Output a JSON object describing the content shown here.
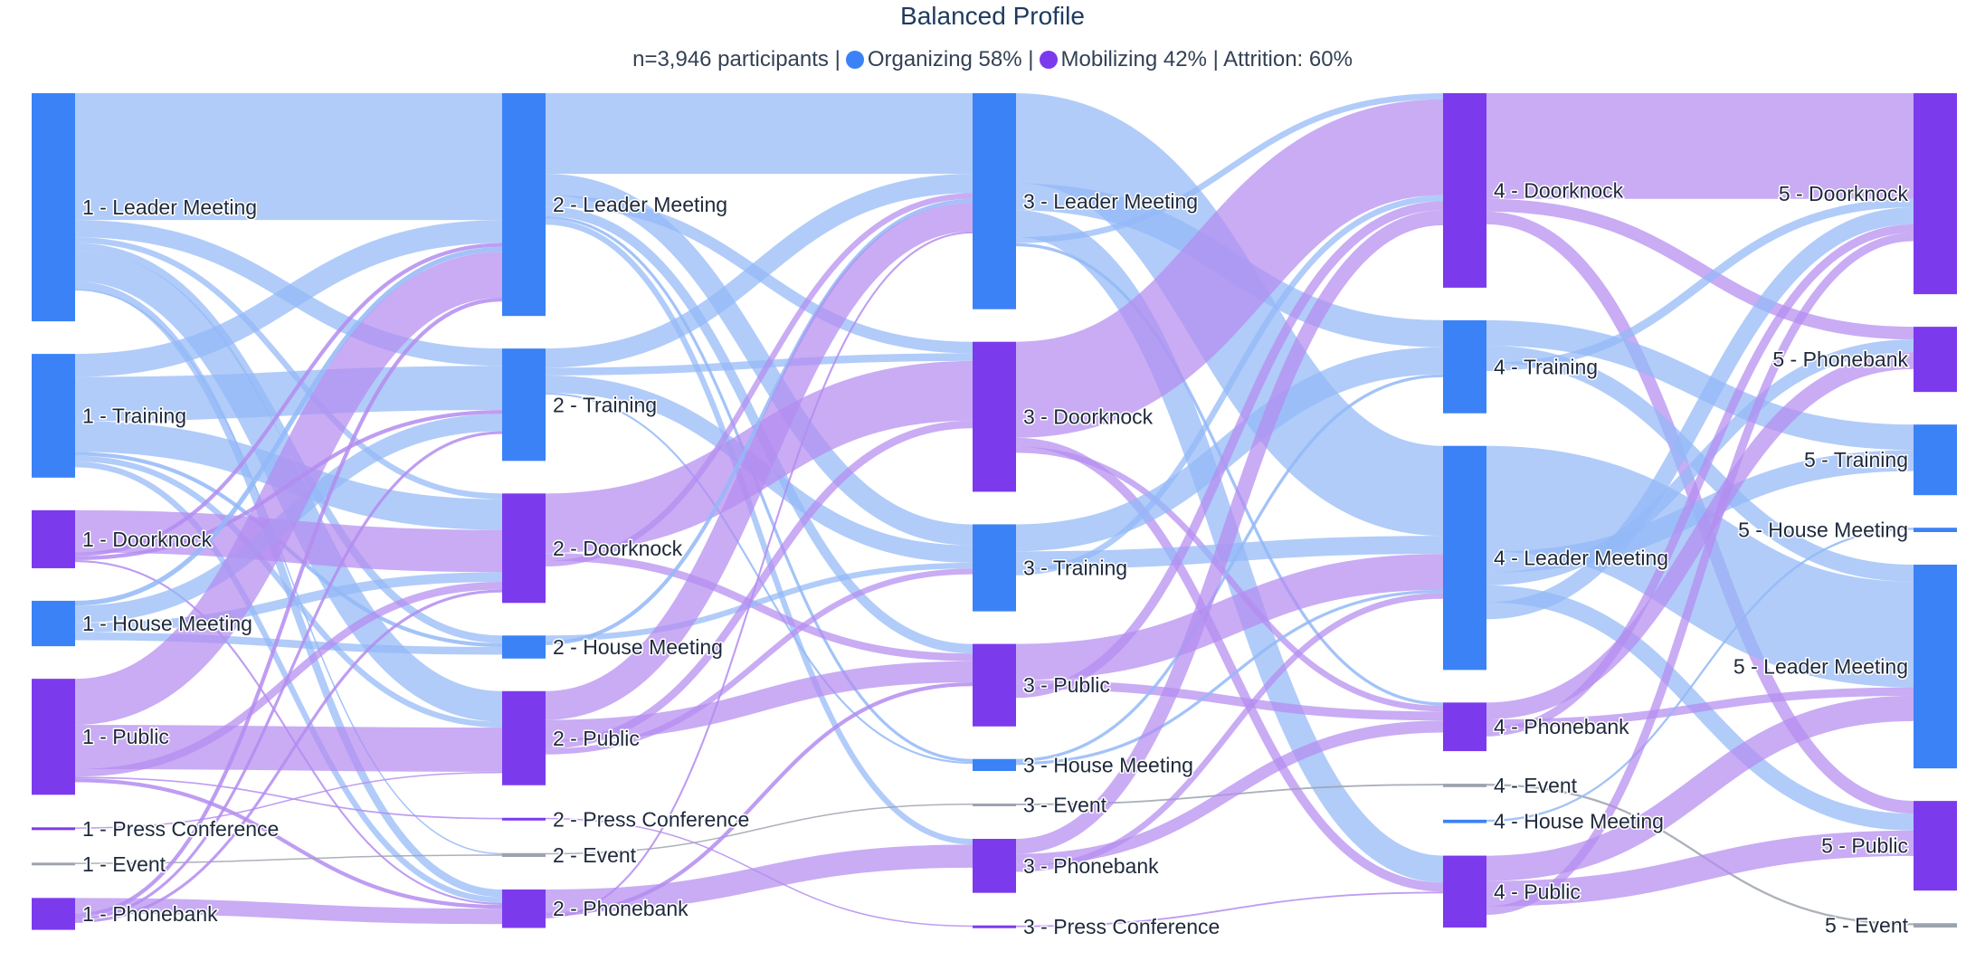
{
  "chart_data": {
    "type": "sankey",
    "title": "Balanced Profile",
    "subtitle": {
      "participants": "n=3,946 participants",
      "sep": "|",
      "organizing": "Organizing 58%",
      "mobilizing": "Mobilizing 42%",
      "attrition": "Attrition: 60%"
    },
    "colors": {
      "organizing": "#3b82f6",
      "organizing_link": "#93b8f7",
      "mobilizing": "#7c3aed",
      "mobilizing_link": "#b48cf0",
      "neutral": "#9ca3af"
    },
    "stages": [
      {
        "stage": 1,
        "nodes": [
          {
            "label": "1 - Leader Meeting",
            "value": 1180,
            "group": "organizing"
          },
          {
            "label": "1 - Training",
            "value": 640,
            "group": "organizing"
          },
          {
            "label": "1 - Doorknock",
            "value": 300,
            "group": "mobilizing"
          },
          {
            "label": "1 - House Meeting",
            "value": 235,
            "group": "organizing"
          },
          {
            "label": "1 - Public",
            "value": 600,
            "group": "mobilizing"
          },
          {
            "label": "1 - Press Conference",
            "value": 8,
            "group": "mobilizing"
          },
          {
            "label": "1 - Event",
            "value": 8,
            "group": "neutral"
          },
          {
            "label": "1 - Phonebank",
            "value": 165,
            "group": "mobilizing"
          }
        ]
      },
      {
        "stage": 2,
        "nodes": [
          {
            "label": "2 - Leader Meeting",
            "value": 1160,
            "group": "organizing"
          },
          {
            "label": "2 - Training",
            "value": 585,
            "group": "organizing"
          },
          {
            "label": "2 - Doorknock",
            "value": 570,
            "group": "mobilizing"
          },
          {
            "label": "2 - House Meeting",
            "value": 120,
            "group": "organizing"
          },
          {
            "label": "2 - Public",
            "value": 490,
            "group": "mobilizing"
          },
          {
            "label": "2 - Press Conference",
            "value": 12,
            "group": "mobilizing"
          },
          {
            "label": "2 - Event",
            "value": 20,
            "group": "neutral"
          },
          {
            "label": "2 - Phonebank",
            "value": 200,
            "group": "mobilizing"
          }
        ]
      },
      {
        "stage": 3,
        "nodes": [
          {
            "label": "3 - Leader Meeting",
            "value": 720,
            "group": "organizing"
          },
          {
            "label": "3 - Doorknock",
            "value": 500,
            "group": "mobilizing"
          },
          {
            "label": "3 - Training",
            "value": 290,
            "group": "organizing"
          },
          {
            "label": "3 - Public",
            "value": 275,
            "group": "mobilizing"
          },
          {
            "label": "3 - House Meeting",
            "value": 40,
            "group": "organizing"
          },
          {
            "label": "3 - Event",
            "value": 8,
            "group": "neutral"
          },
          {
            "label": "3 - Phonebank",
            "value": 180,
            "group": "mobilizing"
          },
          {
            "label": "3 - Press Conference",
            "value": 8,
            "group": "mobilizing"
          }
        ]
      },
      {
        "stage": 4,
        "nodes": [
          {
            "label": "4 - Doorknock",
            "value": 460,
            "group": "mobilizing"
          },
          {
            "label": "4 - Training",
            "value": 220,
            "group": "organizing"
          },
          {
            "label": "4 - Leader Meeting",
            "value": 530,
            "group": "organizing"
          },
          {
            "label": "4 - Phonebank",
            "value": 115,
            "group": "mobilizing"
          },
          {
            "label": "4 - Event",
            "value": 8,
            "group": "neutral"
          },
          {
            "label": "4 - House Meeting",
            "value": 8,
            "group": "organizing"
          },
          {
            "label": "4 - Public",
            "value": 170,
            "group": "mobilizing"
          }
        ]
      },
      {
        "stage": 5,
        "nodes": [
          {
            "label": "5 - Doorknock",
            "value": 370,
            "group": "mobilizing"
          },
          {
            "label": "5 - Phonebank",
            "value": 120,
            "group": "mobilizing"
          },
          {
            "label": "5 - Training",
            "value": 130,
            "group": "organizing"
          },
          {
            "label": "5 - House Meeting",
            "value": 8,
            "group": "organizing"
          },
          {
            "label": "5 - Leader Meeting",
            "value": 375,
            "group": "organizing"
          },
          {
            "label": "5 - Public",
            "value": 165,
            "group": "mobilizing"
          },
          {
            "label": "5 - Event",
            "value": 8,
            "group": "neutral"
          }
        ]
      }
    ],
    "links": [
      {
        "from": "1 - Leader Meeting",
        "to": "2 - Leader Meeting",
        "value": 660
      },
      {
        "from": "1 - Leader Meeting",
        "to": "2 - Training",
        "value": 90
      },
      {
        "from": "1 - Leader Meeting",
        "to": "2 - Doorknock",
        "value": 30
      },
      {
        "from": "1 - Leader Meeting",
        "to": "2 - House Meeting",
        "value": 40
      },
      {
        "from": "1 - Leader Meeting",
        "to": "2 - Public",
        "value": 160
      },
      {
        "from": "1 - Leader Meeting",
        "to": "2 - Phonebank",
        "value": 40
      },
      {
        "from": "1 - Leader Meeting",
        "to": "2 - Event",
        "value": 5
      },
      {
        "from": "1 - Training",
        "to": "2 - Leader Meeting",
        "value": 120
      },
      {
        "from": "1 - Training",
        "to": "2 - Training",
        "value": 230
      },
      {
        "from": "1 - Training",
        "to": "2 - Doorknock",
        "value": 160
      },
      {
        "from": "1 - Training",
        "to": "2 - House Meeting",
        "value": 20
      },
      {
        "from": "1 - Training",
        "to": "2 - Public",
        "value": 30
      },
      {
        "from": "1 - Training",
        "to": "2 - Phonebank",
        "value": 30
      },
      {
        "from": "1 - Doorknock",
        "to": "2 - Doorknock",
        "value": 220
      },
      {
        "from": "1 - Doorknock",
        "to": "2 - Leader Meeting",
        "value": 20
      },
      {
        "from": "1 - Doorknock",
        "to": "2 - Training",
        "value": 20
      },
      {
        "from": "1 - Doorknock",
        "to": "2 - Phonebank",
        "value": 10
      },
      {
        "from": "1 - House Meeting",
        "to": "2 - Leader Meeting",
        "value": 25
      },
      {
        "from": "1 - House Meeting",
        "to": "2 - Training",
        "value": 90
      },
      {
        "from": "1 - House Meeting",
        "to": "2 - Doorknock",
        "value": 50
      },
      {
        "from": "1 - House Meeting",
        "to": "2 - House Meeting",
        "value": 40
      },
      {
        "from": "1 - Public",
        "to": "2 - Leader Meeting",
        "value": 240
      },
      {
        "from": "1 - Public",
        "to": "2 - Public",
        "value": 230
      },
      {
        "from": "1 - Public",
        "to": "2 - Doorknock",
        "value": 40
      },
      {
        "from": "1 - Public",
        "to": "2 - Press Conference",
        "value": 8
      },
      {
        "from": "1 - Public",
        "to": "2 - Phonebank",
        "value": 20
      },
      {
        "from": "1 - Press Conference",
        "to": "2 - Public",
        "value": 5
      },
      {
        "from": "1 - Event",
        "to": "2 - Event",
        "value": 5
      },
      {
        "from": "1 - Phonebank",
        "to": "2 - Phonebank",
        "value": 80
      },
      {
        "from": "1 - Phonebank",
        "to": "2 - Leader Meeting",
        "value": 20
      },
      {
        "from": "1 - Phonebank",
        "to": "2 - Training",
        "value": 15
      },
      {
        "from": "1 - Phonebank",
        "to": "2 - Doorknock",
        "value": 15
      },
      {
        "from": "2 - Leader Meeting",
        "to": "3 - Leader Meeting",
        "value": 420
      },
      {
        "from": "2 - Leader Meeting",
        "to": "3 - Training",
        "value": 110
      },
      {
        "from": "2 - Leader Meeting",
        "to": "3 - Doorknock",
        "value": 60
      },
      {
        "from": "2 - Leader Meeting",
        "to": "3 - Public",
        "value": 50
      },
      {
        "from": "2 - Leader Meeting",
        "to": "3 - House Meeting",
        "value": 15
      },
      {
        "from": "2 - Leader Meeting",
        "to": "3 - Phonebank",
        "value": 30
      },
      {
        "from": "2 - Training",
        "to": "3 - Leader Meeting",
        "value": 100
      },
      {
        "from": "2 - Training",
        "to": "3 - Doorknock",
        "value": 40
      },
      {
        "from": "2 - Training",
        "to": "3 - Training",
        "value": 90
      },
      {
        "from": "2 - Training",
        "to": "3 - House Meeting",
        "value": 10
      },
      {
        "from": "2 - Doorknock",
        "to": "3 - Doorknock",
        "value": 310
      },
      {
        "from": "2 - Doorknock",
        "to": "3 - Public",
        "value": 40
      },
      {
        "from": "2 - Doorknock",
        "to": "3 - Leader Meeting",
        "value": 30
      },
      {
        "from": "2 - House Meeting",
        "to": "3 - Training",
        "value": 30
      },
      {
        "from": "2 - House Meeting",
        "to": "3 - Leader Meeting",
        "value": 20
      },
      {
        "from": "2 - Public",
        "to": "3 - Leader Meeting",
        "value": 150
      },
      {
        "from": "2 - Public",
        "to": "3 - Public",
        "value": 110
      },
      {
        "from": "2 - Public",
        "to": "3 - Doorknock",
        "value": 40
      },
      {
        "from": "2 - Public",
        "to": "3 - Training",
        "value": 30
      },
      {
        "from": "2 - Press Conference",
        "to": "3 - Press Conference",
        "value": 5
      },
      {
        "from": "2 - Event",
        "to": "3 - Event",
        "value": 5
      },
      {
        "from": "2 - Phonebank",
        "to": "3 - Phonebank",
        "value": 120
      },
      {
        "from": "2 - Phonebank",
        "to": "3 - Public",
        "value": 20
      },
      {
        "from": "2 - Phonebank",
        "to": "3 - Leader Meeting",
        "value": 10
      },
      {
        "from": "3 - Leader Meeting",
        "to": "4 - Leader Meeting",
        "value": 300
      },
      {
        "from": "3 - Leader Meeting",
        "to": "4 - Training",
        "value": 90
      },
      {
        "from": "3 - Leader Meeting",
        "to": "4 - Public",
        "value": 90
      },
      {
        "from": "3 - Leader Meeting",
        "to": "4 - Doorknock",
        "value": 20
      },
      {
        "from": "3 - Leader Meeting",
        "to": "4 - Phonebank",
        "value": 10
      },
      {
        "from": "3 - Doorknock",
        "to": "4 - Doorknock",
        "value": 320
      },
      {
        "from": "3 - Doorknock",
        "to": "4 - Public",
        "value": 30
      },
      {
        "from": "3 - Doorknock",
        "to": "4 - Phonebank",
        "value": 20
      },
      {
        "from": "3 - Training",
        "to": "4 - Training",
        "value": 90
      },
      {
        "from": "3 - Training",
        "to": "4 - Leader Meeting",
        "value": 60
      },
      {
        "from": "3 - Training",
        "to": "4 - Doorknock",
        "value": 20
      },
      {
        "from": "3 - Public",
        "to": "4 - Leader Meeting",
        "value": 120
      },
      {
        "from": "3 - Public",
        "to": "4 - Phonebank",
        "value": 30
      },
      {
        "from": "3 - Public",
        "to": "4 - Doorknock",
        "value": 30
      },
      {
        "from": "3 - House Meeting",
        "to": "4 - Training",
        "value": 10
      },
      {
        "from": "3 - House Meeting",
        "to": "4 - Leader Meeting",
        "value": 10
      },
      {
        "from": "3 - Event",
        "to": "4 - Event",
        "value": 5
      },
      {
        "from": "3 - Phonebank",
        "to": "4 - Doorknock",
        "value": 50
      },
      {
        "from": "3 - Phonebank",
        "to": "4 - Phonebank",
        "value": 40
      },
      {
        "from": "3 - Phonebank",
        "to": "4 - Leader Meeting",
        "value": 20
      },
      {
        "from": "3 - Press Conference",
        "to": "4 - Public",
        "value": 5
      },
      {
        "from": "4 - Doorknock",
        "to": "5 - Doorknock",
        "value": 250
      },
      {
        "from": "4 - Doorknock",
        "to": "5 - Phonebank",
        "value": 30
      },
      {
        "from": "4 - Doorknock",
        "to": "5 - Public",
        "value": 30
      },
      {
        "from": "4 - Training",
        "to": "5 - Training",
        "value": 60
      },
      {
        "from": "4 - Training",
        "to": "5 - Leader Meeting",
        "value": 40
      },
      {
        "from": "4 - Training",
        "to": "5 - Doorknock",
        "value": 20
      },
      {
        "from": "4 - Leader Meeting",
        "to": "5 - Leader Meeting",
        "value": 250
      },
      {
        "from": "4 - Leader Meeting",
        "to": "5 - Training",
        "value": 50
      },
      {
        "from": "4 - Leader Meeting",
        "to": "5 - Phonebank",
        "value": 30
      },
      {
        "from": "4 - Leader Meeting",
        "to": "5 - Public",
        "value": 40
      },
      {
        "from": "4 - Leader Meeting",
        "to": "5 - Doorknock",
        "value": 40
      },
      {
        "from": "4 - Phonebank",
        "to": "5 - Phonebank",
        "value": 40
      },
      {
        "from": "4 - Phonebank",
        "to": "5 - Leader Meeting",
        "value": 20
      },
      {
        "from": "4 - Phonebank",
        "to": "5 - Doorknock",
        "value": 20
      },
      {
        "from": "4 - Event",
        "to": "5 - Event",
        "value": 5
      },
      {
        "from": "4 - House Meeting",
        "to": "5 - House Meeting",
        "value": 5
      },
      {
        "from": "4 - Public",
        "to": "5 - Leader Meeting",
        "value": 60
      },
      {
        "from": "4 - Public",
        "to": "5 - Public",
        "value": 60
      },
      {
        "from": "4 - Public",
        "to": "5 - Doorknock",
        "value": 20
      }
    ]
  }
}
